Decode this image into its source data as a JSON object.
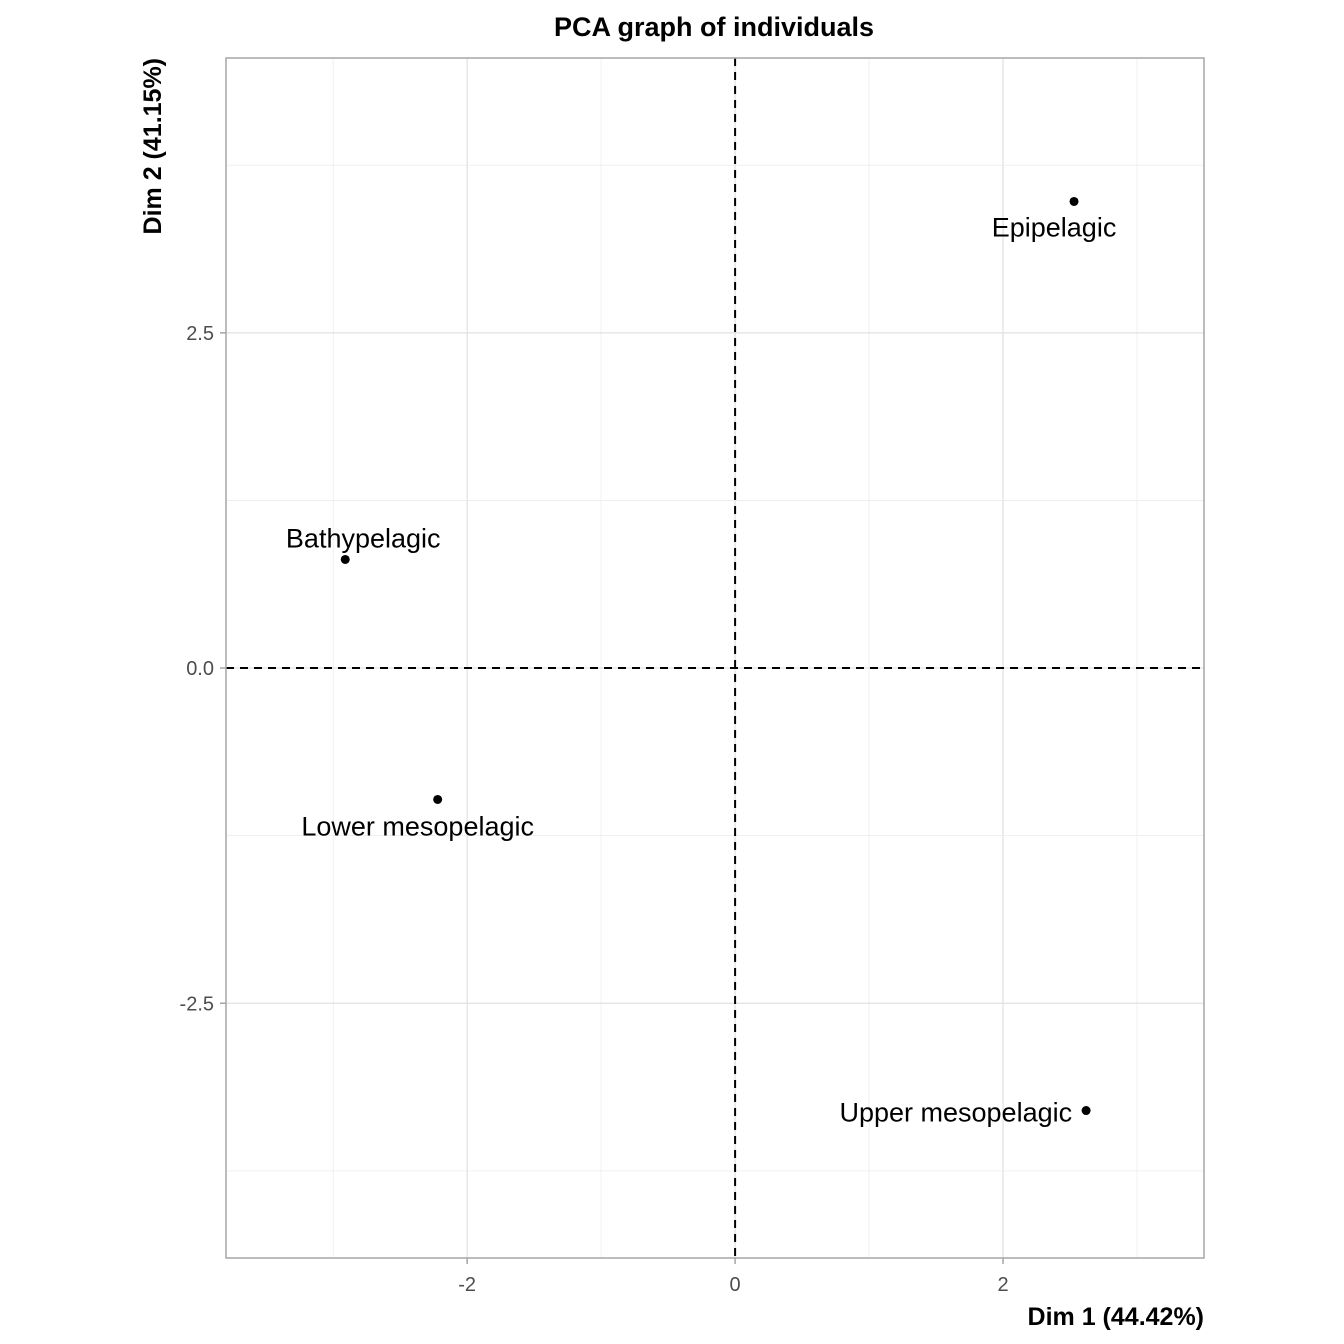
{
  "chart_data": {
    "type": "scatter",
    "title": "PCA graph of individuals",
    "xlabel": "Dim 1 (44.42%)",
    "ylabel": "Dim 2 (41.15%)",
    "xlim": [
      -3.8,
      3.5
    ],
    "ylim": [
      -4.4,
      4.55
    ],
    "xticks": [
      -2,
      0,
      2
    ],
    "xtick_labels": [
      "-2",
      "0",
      "2"
    ],
    "yticks": [
      -2.5,
      0,
      2.5
    ],
    "ytick_labels": [
      "-2.5",
      "0.0",
      "2.5"
    ],
    "grid": true,
    "reference_lines": {
      "x": 0,
      "y": 0
    },
    "points": [
      {
        "label": "Epipelagic",
        "x": 2.53,
        "y": 3.48
      },
      {
        "label": "Bathypelagic",
        "x": -2.91,
        "y": 0.81
      },
      {
        "label": "Lower mesopelagic",
        "x": -2.22,
        "y": -0.98
      },
      {
        "label": "Upper mesopelagic",
        "x": 2.62,
        "y": -3.3
      }
    ],
    "colors": {
      "points": "#000000",
      "grid": "#e0e0e0",
      "background": "#ffffff"
    }
  }
}
